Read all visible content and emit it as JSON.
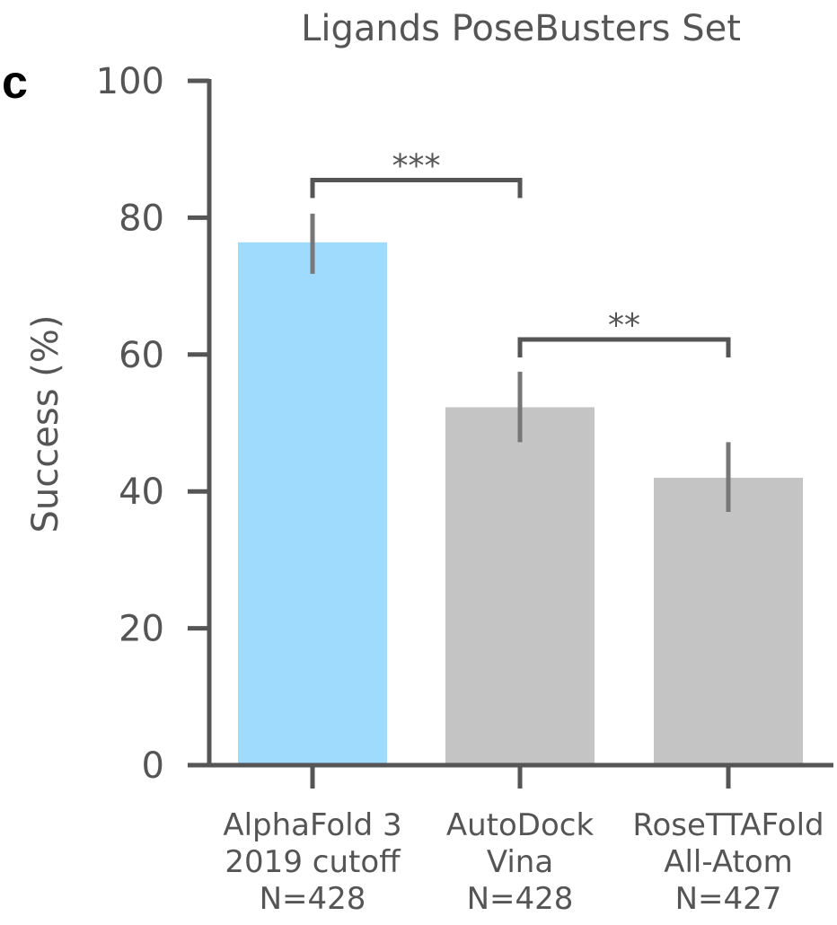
{
  "panel_letter": "c",
  "colors": {
    "axis": "#555555",
    "text": "#555555",
    "highlight_bar": "#9fdbfd",
    "baseline_bar": "#c4c4c4",
    "error_bar": "#777777"
  },
  "chart_data": {
    "type": "bar",
    "title": "Ligands PoseBusters Set",
    "ylabel": "Success (%)",
    "xlabel": "",
    "ylim": [
      0,
      100
    ],
    "yticks": [
      0,
      20,
      40,
      60,
      80,
      100
    ],
    "grid": false,
    "categories": [
      [
        "AlphaFold 3",
        "2019 cutoff",
        "N=428"
      ],
      [
        "AutoDock",
        "Vina",
        "N=428"
      ],
      [
        "RoseTTAFold",
        "All-Atom",
        "N=427"
      ]
    ],
    "values": [
      76.4,
      52.3,
      42.0
    ],
    "error_low": [
      71.8,
      47.2,
      37.0
    ],
    "error_high": [
      80.6,
      57.5,
      47.2
    ],
    "bar_colors": [
      "#9fdbfd",
      "#c4c4c4",
      "#c4c4c4"
    ],
    "significance": [
      {
        "from": 0,
        "to": 1,
        "label": "***",
        "y": 85.5
      },
      {
        "from": 1,
        "to": 2,
        "label": "**",
        "y": 62.2
      }
    ]
  }
}
